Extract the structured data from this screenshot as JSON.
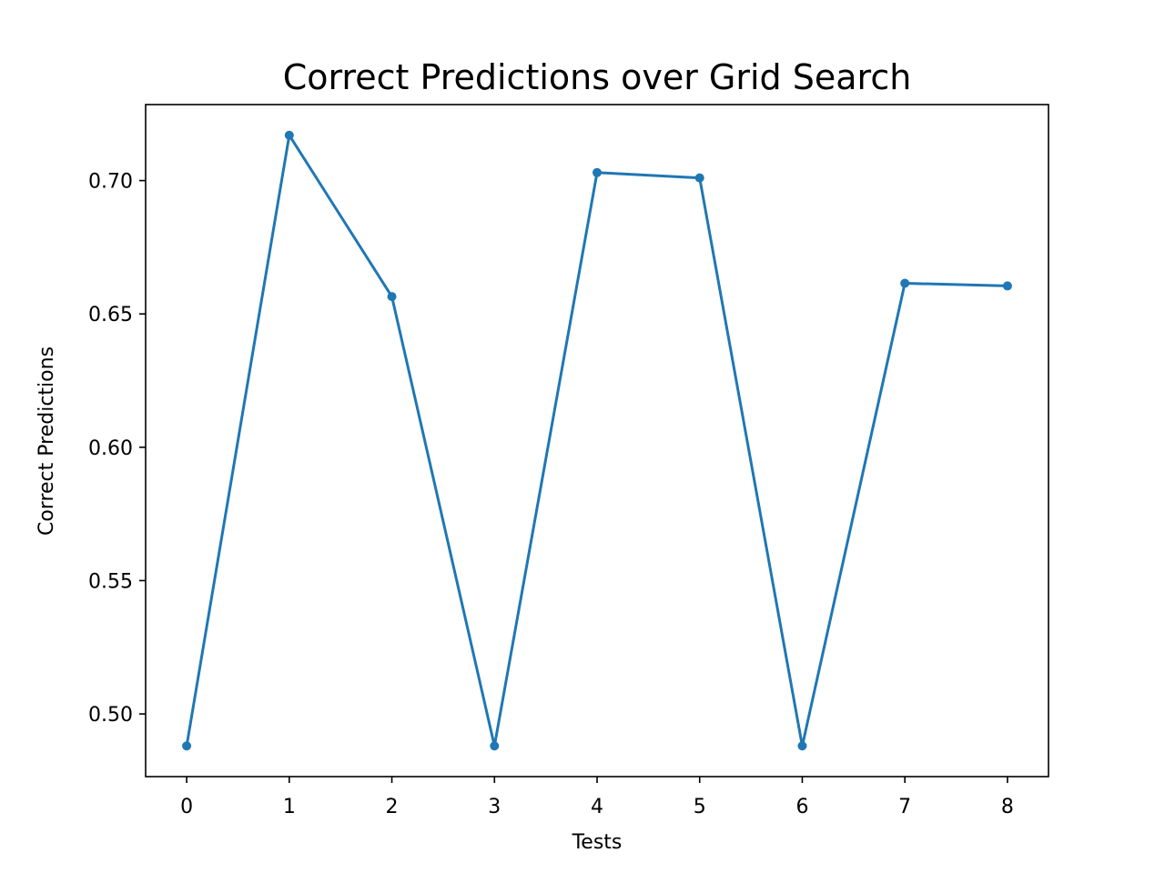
{
  "chart_data": {
    "type": "line",
    "title": "Correct Predictions over Grid Search",
    "xlabel": "Tests",
    "ylabel": "Correct Predictions",
    "x": [
      0,
      1,
      2,
      3,
      4,
      5,
      6,
      7,
      8
    ],
    "series": [
      {
        "values": [
          0.488,
          0.717,
          0.6565,
          0.488,
          0.703,
          0.701,
          0.488,
          0.6615,
          0.6605
        ],
        "color": "#1f77b4",
        "marker": "circle"
      }
    ],
    "xticks": [
      0,
      1,
      2,
      3,
      4,
      5,
      6,
      7,
      8
    ],
    "yticks": [
      0.5,
      0.55,
      0.6,
      0.65,
      0.7
    ],
    "ytick_labels": [
      "0.50",
      "0.55",
      "0.60",
      "0.65",
      "0.70"
    ],
    "xlim": [
      -0.4,
      8.4
    ],
    "ylim": [
      0.4765,
      0.7285
    ],
    "grid": false,
    "legend": "none"
  }
}
